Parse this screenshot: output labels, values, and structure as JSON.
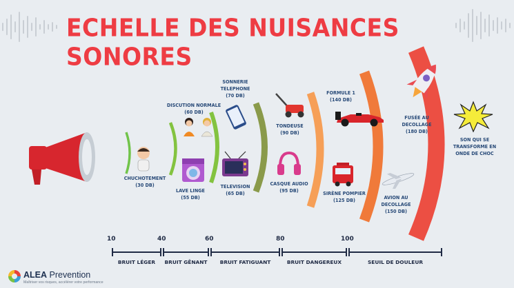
{
  "title": "ECHELLE DES NUISANCES SONORES",
  "colors": {
    "background": "#e9edf1",
    "title": "#ee3c43",
    "label": "#284a78",
    "arc_green_light": "#71c44a",
    "arc_green": "#83c340",
    "arc_olive": "#8a9a4a",
    "arc_orange_light": "#f69f57",
    "arc_orange": "#f07a3a",
    "arc_red": "#ec4f43"
  },
  "items": [
    {
      "id": "chuchotement",
      "lines": [
        "CHUCHOTEMENT",
        "(30 DB)"
      ],
      "icon": "whisper-person-icon"
    },
    {
      "id": "discussion",
      "lines": [
        "DISCUTION NORMALE",
        "(60 DB)"
      ],
      "icon": "conversation-icon"
    },
    {
      "id": "lave-linge",
      "lines": [
        "LAVE LINGE",
        "(55 DB)"
      ],
      "icon": "washing-machine-icon"
    },
    {
      "id": "sonnerie",
      "lines": [
        "SONNERIE",
        "TELEPHONE",
        "(70 DB)"
      ],
      "icon": "phone-icon"
    },
    {
      "id": "television",
      "lines": [
        "TELEVISION",
        "(65 DB)"
      ],
      "icon": "tv-icon"
    },
    {
      "id": "tondeuse",
      "lines": [
        "TONDEUSE",
        "(90 DB)"
      ],
      "icon": "lawnmower-icon"
    },
    {
      "id": "casque",
      "lines": [
        "CASQUE AUDIO",
        "(95 DB)"
      ],
      "icon": "headphones-icon"
    },
    {
      "id": "formule1",
      "lines": [
        "FORMULE 1",
        "(140 DB)"
      ],
      "icon": "race-car-icon"
    },
    {
      "id": "sirene",
      "lines": [
        "SIRÈNE POMPIER",
        "(125 DB)"
      ],
      "icon": "fire-truck-icon"
    },
    {
      "id": "fusee",
      "lines": [
        "FUSÉE AU",
        "DECOLLAGE",
        "(180 DB)"
      ],
      "icon": "rocket-icon"
    },
    {
      "id": "avion",
      "lines": [
        "AVION AU",
        "DECOLLAGE",
        "(150 DB)"
      ],
      "icon": "airplane-icon"
    },
    {
      "id": "onde",
      "lines": [
        "SON QUI SE",
        "TRANSFORME EN",
        "ONDE DE CHOC"
      ],
      "icon": "shockwave-icon"
    }
  ],
  "scale": {
    "ticks": [
      "10",
      "40",
      "60",
      "80",
      "100"
    ],
    "categories": [
      "BRUIT LÉGER",
      "BRUIT GÊNANT",
      "BRUIT FATIGUANT",
      "BRUIT DANGEREUX",
      "SEUIL DE DOULEUR"
    ]
  },
  "logo": {
    "brand_bold": "ALEA",
    "brand_light": " Prevention",
    "tagline": "Maîtriser vos risques, accélérer votre performance"
  },
  "icons": {
    "megaphone": "megaphone-icon",
    "logo_mark": "alea-logo-icon"
  }
}
